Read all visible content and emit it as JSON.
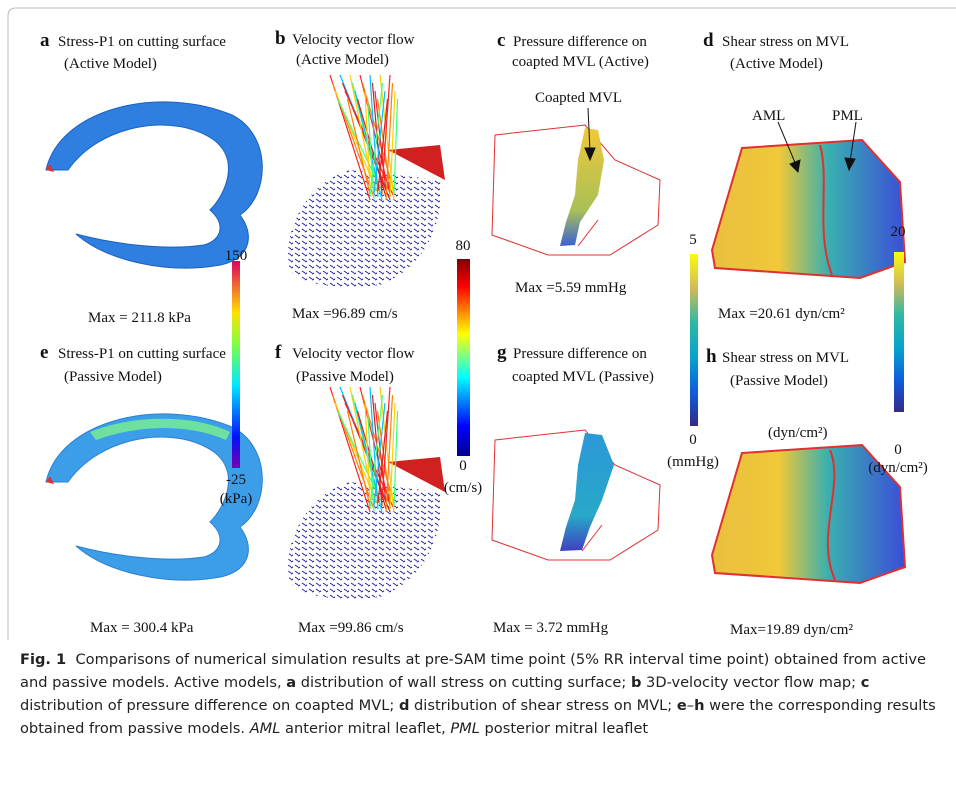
{
  "panels": [
    {
      "letter": "a",
      "title": "Stress-P1 on cutting surface",
      "subtitle": "(Active Model)",
      "max": "Max = 211.8 kPa"
    },
    {
      "letter": "b",
      "title": "Velocity vector flow",
      "subtitle": "(Active Model)",
      "max": "Max =96.89 cm/s"
    },
    {
      "letter": "c",
      "title": "Pressure difference on",
      "subtitle": "coapted MVL (Active)",
      "max": "Max =5.59 mmHg"
    },
    {
      "letter": "d",
      "title": "Shear stress on MVL",
      "subtitle": "(Active Model)",
      "max": "Max =20.61 dyn/cm²"
    },
    {
      "letter": "e",
      "title": "Stress-P1 on cutting surface",
      "subtitle": "(Passive Model)",
      "max": "Max = 300.4 kPa"
    },
    {
      "letter": "f",
      "title": "Velocity vector flow",
      "subtitle": "(Passive Model)",
      "max": "Max =99.86 cm/s"
    },
    {
      "letter": "g",
      "title": "Pressure difference on",
      "subtitle": "coapted MVL (Passive)",
      "max": "Max = 3.72 mmHg"
    },
    {
      "letter": "h",
      "title": "Shear stress on MVL",
      "subtitle": "(Passive Model)",
      "max": "Max=19.89 dyn/cm²"
    }
  ],
  "annotations": {
    "coapted": "Coapted MVL",
    "aml": "AML",
    "pml": "PML",
    "h_unit": "(dyn/cm²)"
  },
  "colorbars": [
    {
      "max": "150",
      "min": "-25",
      "unit": "(kPa)"
    },
    {
      "max": "80",
      "min": "0",
      "unit": "(cm/s)"
    },
    {
      "max": "5",
      "min": "0",
      "unit": "(mmHg)"
    },
    {
      "max": "20",
      "min": "0",
      "unit": "(dyn/cm²)"
    }
  ],
  "caption": {
    "runs": [
      {
        "text": "Fig. 1",
        "style": "bold"
      },
      {
        "text": "  Comparisons of numerical simulation results at pre-SAM time point (5% RR interval time point) obtained from active and passive models. Active models, ",
        "style": "normal"
      },
      {
        "text": "a",
        "style": "bold"
      },
      {
        "text": " distribution of wall stress on cutting surface; ",
        "style": "normal"
      },
      {
        "text": "b",
        "style": "bold"
      },
      {
        "text": " 3D-velocity vector flow map; ",
        "style": "normal"
      },
      {
        "text": "c",
        "style": "bold"
      },
      {
        "text": " distribution of pressure difference on coapted MVL; ",
        "style": "normal"
      },
      {
        "text": "d",
        "style": "bold"
      },
      {
        "text": " distribution of shear stress on MVL; ",
        "style": "normal"
      },
      {
        "text": "e",
        "style": "bold"
      },
      {
        "text": "–",
        "style": "normal"
      },
      {
        "text": "h",
        "style": "bold"
      },
      {
        "text": " were the corresponding results obtained from passive models. ",
        "style": "normal"
      },
      {
        "text": "AML",
        "style": "italic"
      },
      {
        "text": " anterior mitral leaflet, ",
        "style": "normal"
      },
      {
        "text": "PML",
        "style": "italic"
      },
      {
        "text": " posterior mitral leaflet",
        "style": "normal"
      }
    ]
  }
}
